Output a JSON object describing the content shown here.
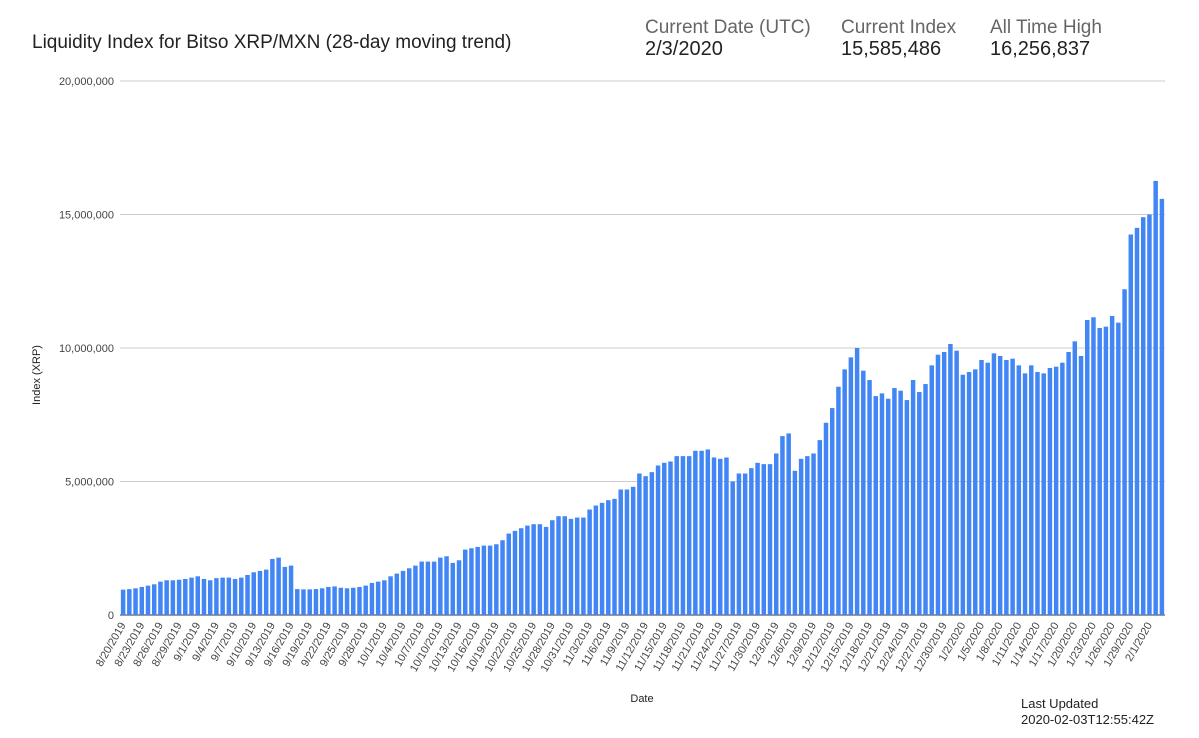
{
  "chart_data": {
    "type": "bar",
    "title": "Liquidity Index for Bitso XRP/MXN (28-day moving trend)",
    "stats": [
      {
        "label": "Current Date (UTC)",
        "value": "2/3/2020"
      },
      {
        "label": "Current Index",
        "value": "15,585,486"
      },
      {
        "label": "All Time High",
        "value": "16,256,837"
      }
    ],
    "x_label": "Date",
    "y_label": "Index (XRP)",
    "footer": {
      "label": "Last Updated",
      "value": "2020-02-03T12:55:42Z"
    },
    "color": "#4285f4",
    "grid": true,
    "ylim": [
      0,
      20000000
    ],
    "yticks": [
      0,
      {
        "value": 5000000,
        "label": "5,000,000"
      },
      {
        "value": 10000000,
        "label": "10,000,000"
      },
      {
        "value": 15000000,
        "label": "15,000,000"
      },
      {
        "value": 20000000,
        "label": "20,000,000"
      }
    ],
    "categories": [
      "8/20/2019",
      null,
      null,
      "8/23/2019",
      null,
      null,
      "8/26/2019",
      null,
      null,
      "8/29/2019",
      null,
      null,
      "9/1/2019",
      null,
      null,
      "9/4/2019",
      null,
      null,
      "9/7/2019",
      null,
      null,
      "9/10/2019",
      null,
      null,
      "9/13/2019",
      null,
      null,
      "9/16/2019",
      null,
      null,
      "9/19/2019",
      null,
      null,
      "9/22/2019",
      null,
      null,
      "9/25/2019",
      null,
      null,
      "9/28/2019",
      null,
      null,
      "10/1/2019",
      null,
      null,
      "10/4/2019",
      null,
      null,
      "10/7/2019",
      null,
      null,
      "10/10/2019",
      null,
      null,
      "10/13/2019",
      null,
      null,
      "10/16/2019",
      null,
      null,
      "10/19/2019",
      null,
      null,
      "10/22/2019",
      null,
      null,
      "10/25/2019",
      null,
      null,
      "10/28/2019",
      null,
      null,
      "10/31/2019",
      null,
      null,
      "11/3/2019",
      null,
      null,
      "11/6/2019",
      null,
      null,
      "11/9/2019",
      null,
      null,
      "11/12/2019",
      null,
      null,
      "11/15/2019",
      null,
      null,
      "11/18/2019",
      null,
      null,
      "11/21/2019",
      null,
      null,
      "11/24/2019",
      null,
      null,
      "11/27/2019",
      null,
      null,
      "11/30/2019",
      null,
      null,
      "12/3/2019",
      null,
      null,
      "12/6/2019",
      null,
      null,
      "12/9/2019",
      null,
      null,
      "12/12/2019",
      null,
      null,
      "12/15/2019",
      null,
      null,
      "12/18/2019",
      null,
      null,
      "12/21/2019",
      null,
      null,
      "12/24/2019",
      null,
      null,
      "12/27/2019",
      null,
      null,
      "12/30/2019",
      null,
      null,
      "1/2/2020",
      null,
      null,
      "1/5/2020",
      null,
      null,
      "1/8/2020",
      null,
      null,
      "1/11/2020",
      null,
      null,
      "1/14/2020",
      null,
      null,
      "1/17/2020",
      null,
      null,
      "1/20/2020",
      null,
      null,
      "1/23/2020",
      null,
      null,
      "1/26/2020",
      null,
      null,
      "1/29/2020",
      null,
      null,
      "2/1/2020",
      null,
      null
    ],
    "values": [
      950000,
      970000,
      1000000,
      1050000,
      1100000,
      1150000,
      1250000,
      1300000,
      1300000,
      1320000,
      1350000,
      1400000,
      1450000,
      1350000,
      1300000,
      1380000,
      1400000,
      1400000,
      1350000,
      1400000,
      1500000,
      1600000,
      1650000,
      1700000,
      2100000,
      2150000,
      1800000,
      1850000,
      970000,
      960000,
      960000,
      970000,
      1000000,
      1050000,
      1070000,
      1020000,
      1000000,
      1020000,
      1050000,
      1100000,
      1200000,
      1250000,
      1300000,
      1450000,
      1550000,
      1650000,
      1750000,
      1850000,
      2000000,
      2000000,
      2000000,
      2150000,
      2200000,
      1950000,
      2050000,
      2450000,
      2500000,
      2550000,
      2600000,
      2600000,
      2650000,
      2800000,
      3050000,
      3150000,
      3250000,
      3350000,
      3400000,
      3400000,
      3300000,
      3550000,
      3700000,
      3700000,
      3600000,
      3650000,
      3650000,
      3950000,
      4100000,
      4200000,
      4300000,
      4350000,
      4700000,
      4700000,
      4800000,
      5300000,
      5200000,
      5350000,
      5600000,
      5700000,
      5750000,
      5950000,
      5950000,
      5950000,
      6150000,
      6150000,
      6200000,
      5900000,
      5850000,
      5900000,
      5000000,
      5300000,
      5300000,
      5500000,
      5700000,
      5650000,
      5650000,
      6050000,
      6700000,
      6800000,
      5400000,
      5850000,
      5950000,
      6050000,
      6550000,
      7200000,
      7750000,
      8550000,
      9200000,
      9650000,
      10000000,
      9150000,
      8800000,
      8200000,
      8300000,
      8100000,
      8500000,
      8400000,
      8050000,
      8800000,
      8350000,
      8650000,
      9350000,
      9750000,
      9850000,
      10150000,
      9900000,
      9000000,
      9100000,
      9200000,
      9550000,
      9450000,
      9800000,
      9700000,
      9550000,
      9600000,
      9350000,
      9050000,
      9350000,
      9100000,
      9050000,
      9250000,
      9300000,
      9450000,
      9850000,
      10250000,
      9700000,
      11050000,
      11150000,
      10750000,
      10800000,
      11200000,
      10950000,
      12200000,
      14250000,
      14500000,
      14900000,
      15000000,
      16256837,
      15585486
    ]
  }
}
